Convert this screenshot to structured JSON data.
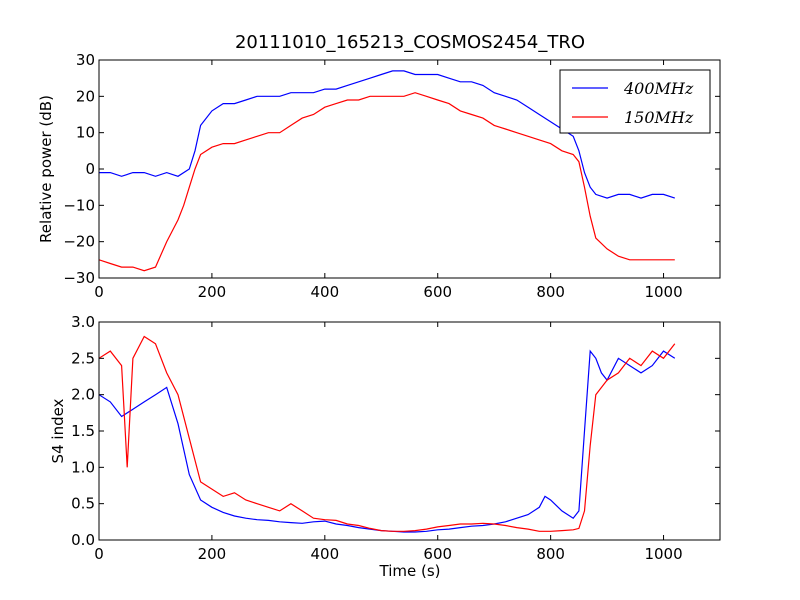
{
  "chart_data": [
    {
      "type": "line",
      "title": "20111010_165213_COSMOS2454_TRO",
      "xlabel": "",
      "ylabel": "Relative power (dB)",
      "xlim": [
        0,
        1100
      ],
      "ylim": [
        -30,
        30
      ],
      "xticks": [
        "0",
        "200",
        "400",
        "600",
        "800",
        "1000"
      ],
      "yticks": [
        "−30",
        "−20",
        "−10",
        "0",
        "10",
        "20",
        "30"
      ],
      "legend": {
        "placement": "top-right",
        "entries": [
          "400MHz",
          "150MHz"
        ]
      },
      "series": [
        {
          "name": "400MHz",
          "color": "#0000ff",
          "x": [
            0,
            20,
            40,
            60,
            80,
            100,
            120,
            140,
            160,
            170,
            180,
            200,
            220,
            240,
            260,
            280,
            300,
            320,
            340,
            360,
            380,
            400,
            420,
            440,
            460,
            480,
            500,
            520,
            540,
            560,
            580,
            600,
            620,
            640,
            660,
            680,
            700,
            720,
            740,
            760,
            780,
            800,
            820,
            840,
            850,
            860,
            870,
            880,
            900,
            920,
            940,
            960,
            980,
            1000,
            1020
          ],
          "values": [
            -1,
            -1,
            -2,
            -1,
            -1,
            -2,
            -1,
            -2,
            0,
            5,
            12,
            16,
            18,
            18,
            19,
            20,
            20,
            20,
            21,
            21,
            21,
            22,
            22,
            23,
            24,
            25,
            26,
            27,
            27,
            26,
            26,
            26,
            25,
            24,
            24,
            23,
            21,
            20,
            19,
            17,
            15,
            13,
            11,
            9,
            5,
            -1,
            -5,
            -7,
            -8,
            -7,
            -7,
            -8,
            -7,
            -7,
            -8
          ]
        },
        {
          "name": "150MHz",
          "color": "#ff0000",
          "x": [
            0,
            20,
            40,
            60,
            80,
            100,
            120,
            140,
            150,
            160,
            170,
            180,
            200,
            220,
            240,
            260,
            280,
            300,
            320,
            340,
            360,
            380,
            400,
            420,
            440,
            460,
            480,
            500,
            520,
            540,
            560,
            580,
            600,
            620,
            640,
            660,
            680,
            700,
            720,
            740,
            760,
            780,
            800,
            820,
            840,
            850,
            860,
            870,
            880,
            900,
            920,
            940,
            960,
            980,
            1000,
            1020
          ],
          "values": [
            -25,
            -26,
            -27,
            -27,
            -28,
            -27,
            -20,
            -14,
            -10,
            -5,
            0,
            4,
            6,
            7,
            7,
            8,
            9,
            10,
            10,
            12,
            14,
            15,
            17,
            18,
            19,
            19,
            20,
            20,
            20,
            20,
            21,
            20,
            19,
            18,
            16,
            15,
            14,
            12,
            11,
            10,
            9,
            8,
            7,
            5,
            4,
            2,
            -5,
            -13,
            -19,
            -22,
            -24,
            -25,
            -25,
            -25,
            -25,
            -25
          ]
        }
      ]
    },
    {
      "type": "line",
      "title": "",
      "xlabel": "Time (s)",
      "ylabel": "S4 index",
      "xlim": [
        0,
        1100
      ],
      "ylim": [
        0,
        3
      ],
      "xticks": [
        "0",
        "200",
        "400",
        "600",
        "800",
        "1000"
      ],
      "yticks": [
        "0.0",
        "0.5",
        "1.0",
        "1.5",
        "2.0",
        "2.5",
        "3.0"
      ],
      "series": [
        {
          "name": "400MHz",
          "color": "#0000ff",
          "x": [
            0,
            20,
            40,
            60,
            80,
            100,
            120,
            140,
            160,
            180,
            200,
            220,
            240,
            260,
            280,
            300,
            320,
            340,
            360,
            380,
            400,
            420,
            440,
            460,
            480,
            500,
            520,
            540,
            560,
            580,
            600,
            620,
            640,
            660,
            680,
            700,
            720,
            740,
            760,
            780,
            790,
            800,
            820,
            840,
            850,
            860,
            870,
            880,
            890,
            900,
            920,
            940,
            960,
            980,
            1000,
            1020
          ],
          "values": [
            2.0,
            1.9,
            1.7,
            1.8,
            1.9,
            2.0,
            2.1,
            1.6,
            0.9,
            0.55,
            0.45,
            0.38,
            0.33,
            0.3,
            0.28,
            0.27,
            0.25,
            0.24,
            0.23,
            0.25,
            0.26,
            0.22,
            0.2,
            0.17,
            0.15,
            0.13,
            0.12,
            0.11,
            0.11,
            0.12,
            0.14,
            0.15,
            0.17,
            0.19,
            0.2,
            0.22,
            0.25,
            0.3,
            0.35,
            0.45,
            0.6,
            0.55,
            0.4,
            0.3,
            0.4,
            1.5,
            2.6,
            2.5,
            2.3,
            2.2,
            2.5,
            2.4,
            2.3,
            2.4,
            2.6,
            2.5
          ]
        },
        {
          "name": "150MHz",
          "color": "#ff0000",
          "x": [
            0,
            20,
            40,
            50,
            60,
            80,
            100,
            120,
            140,
            160,
            180,
            200,
            220,
            240,
            260,
            280,
            300,
            320,
            340,
            360,
            380,
            400,
            420,
            440,
            460,
            480,
            500,
            520,
            540,
            560,
            580,
            600,
            620,
            640,
            660,
            680,
            700,
            720,
            740,
            760,
            780,
            800,
            820,
            840,
            850,
            860,
            870,
            880,
            900,
            920,
            940,
            960,
            980,
            1000,
            1020
          ],
          "values": [
            2.5,
            2.6,
            2.4,
            1.0,
            2.5,
            2.8,
            2.7,
            2.3,
            2.0,
            1.4,
            0.8,
            0.7,
            0.6,
            0.65,
            0.55,
            0.5,
            0.45,
            0.4,
            0.5,
            0.4,
            0.3,
            0.28,
            0.27,
            0.22,
            0.2,
            0.16,
            0.13,
            0.12,
            0.12,
            0.13,
            0.15,
            0.18,
            0.2,
            0.22,
            0.22,
            0.23,
            0.22,
            0.2,
            0.17,
            0.15,
            0.12,
            0.12,
            0.13,
            0.14,
            0.16,
            0.4,
            1.3,
            2.0,
            2.2,
            2.3,
            2.5,
            2.4,
            2.6,
            2.5,
            2.7
          ]
        }
      ]
    }
  ]
}
